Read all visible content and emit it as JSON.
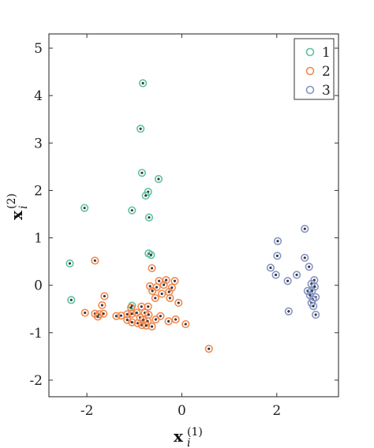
{
  "chart_data": {
    "type": "scatter",
    "xlabel": "x",
    "xlabel_sup": "(1)",
    "xlabel_sub": "i",
    "ylabel": "x",
    "ylabel_sup": "(2)",
    "ylabel_sub": "i",
    "xlim": [
      -2.8,
      3.3
    ],
    "ylim": [
      -2.35,
      5.3
    ],
    "xticks": [
      {
        "v": -2,
        "label": "-2"
      },
      {
        "v": 0,
        "label": "0"
      },
      {
        "v": 2,
        "label": "2"
      }
    ],
    "yticks": [
      {
        "v": -2,
        "label": "-2"
      },
      {
        "v": -1,
        "label": "-1"
      },
      {
        "v": 0,
        "label": "0"
      },
      {
        "v": 1,
        "label": "1"
      },
      {
        "v": 2,
        "label": "2"
      },
      {
        "v": 3,
        "label": "3"
      },
      {
        "v": 4,
        "label": "4"
      },
      {
        "v": 5,
        "label": "5"
      }
    ],
    "grid": false,
    "legend_position": "top-right",
    "series": [
      {
        "name": "1",
        "color": "#5cc39a",
        "points": [
          [
            -0.82,
            4.26
          ],
          [
            -0.87,
            3.3
          ],
          [
            -0.84,
            2.37
          ],
          [
            -0.49,
            2.24
          ],
          [
            -0.71,
            1.97
          ],
          [
            -0.76,
            1.89
          ],
          [
            -2.05,
            1.63
          ],
          [
            -1.05,
            1.58
          ],
          [
            -0.69,
            1.43
          ],
          [
            -0.7,
            0.67
          ],
          [
            -0.65,
            0.64
          ],
          [
            -2.36,
            0.46
          ],
          [
            -2.33,
            -0.31
          ],
          [
            -1.05,
            -0.43
          ]
        ]
      },
      {
        "name": "2",
        "color": "#f4884f",
        "points": [
          [
            -1.83,
            0.52
          ],
          [
            -0.63,
            0.36
          ],
          [
            -0.33,
            0.11
          ],
          [
            -0.48,
            0.09
          ],
          [
            -0.15,
            0.09
          ],
          [
            -0.67,
            -0.02
          ],
          [
            -0.38,
            0.01
          ],
          [
            -0.53,
            -0.04
          ],
          [
            -0.21,
            -0.05
          ],
          [
            -0.62,
            -0.12
          ],
          [
            -0.42,
            -0.18
          ],
          [
            -0.27,
            -0.14
          ],
          [
            -0.56,
            -0.27
          ],
          [
            -0.25,
            -0.27
          ],
          [
            -1.63,
            -0.23
          ],
          [
            -0.07,
            -0.37
          ],
          [
            -1.68,
            -0.42
          ],
          [
            -0.85,
            -0.45
          ],
          [
            -0.71,
            -0.45
          ],
          [
            -1.07,
            -0.47
          ],
          [
            -2.04,
            -0.58
          ],
          [
            -1.83,
            -0.6
          ],
          [
            -1.74,
            -0.61
          ],
          [
            -1.65,
            -0.6
          ],
          [
            -1.77,
            -0.66
          ],
          [
            -1.38,
            -0.65
          ],
          [
            -1.28,
            -0.64
          ],
          [
            -1.15,
            -0.61
          ],
          [
            -1.05,
            -0.6
          ],
          [
            -0.95,
            -0.58
          ],
          [
            -0.78,
            -0.58
          ],
          [
            -0.7,
            -0.62
          ],
          [
            -0.88,
            -0.68
          ],
          [
            -0.81,
            -0.73
          ],
          [
            -0.72,
            -0.76
          ],
          [
            -0.93,
            -0.8
          ],
          [
            -0.84,
            -0.84
          ],
          [
            -0.75,
            -0.85
          ],
          [
            -0.63,
            -0.87
          ],
          [
            -0.55,
            -0.72
          ],
          [
            -0.45,
            -0.65
          ],
          [
            -0.28,
            -0.76
          ],
          [
            -0.13,
            -0.72
          ],
          [
            -1.15,
            -0.73
          ],
          [
            -1.05,
            -0.78
          ],
          [
            0.08,
            -0.82
          ],
          [
            0.57,
            -1.34
          ]
        ]
      },
      {
        "name": "3",
        "color": "#8494c6",
        "points": [
          [
            2.59,
            1.19
          ],
          [
            2.02,
            0.93
          ],
          [
            2.01,
            0.62
          ],
          [
            2.59,
            0.58
          ],
          [
            1.87,
            0.37
          ],
          [
            2.68,
            0.39
          ],
          [
            1.98,
            0.22
          ],
          [
            2.42,
            0.22
          ],
          [
            2.23,
            0.09
          ],
          [
            2.79,
            0.11
          ],
          [
            2.73,
            0.03
          ],
          [
            2.8,
            -0.03
          ],
          [
            2.65,
            -0.12
          ],
          [
            2.74,
            -0.12
          ],
          [
            2.7,
            -0.21
          ],
          [
            2.82,
            -0.25
          ],
          [
            2.76,
            -0.3
          ],
          [
            2.73,
            -0.37
          ],
          [
            2.77,
            -0.44
          ],
          [
            2.25,
            -0.55
          ],
          [
            2.82,
            -0.62
          ]
        ]
      }
    ]
  }
}
